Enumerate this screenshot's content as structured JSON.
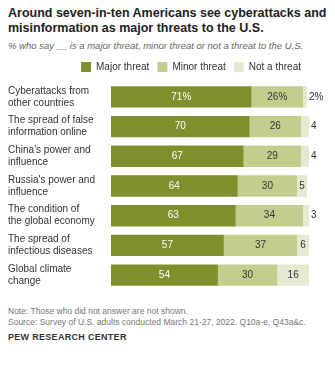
{
  "chart_data": {
    "type": "bar",
    "orientation": "horizontal",
    "stacked": true,
    "data_labels": true,
    "tick_labels": "y",
    "grid": false,
    "legend": "top",
    "title": "Around seven-in-ten Americans see cyberattacks and misinformation as major threats to the U.S.",
    "subtitle": "% who say __ is a major threat, minor threat or not a threat to the U.S.",
    "note": "Note: Those who did not answer are not shown.",
    "source": "Source: Survey of U.S. adults conducted March 21-27, 2022. Q10a-e, Q43a&c.",
    "footer": "PEW RESEARCH CENTER",
    "categories": [
      "Cyberattacks from other countries",
      "The spread of false information online",
      "China's power and influence",
      "Russia's power and influence",
      "The condition of the global economy",
      "The spread of infectious diseases",
      "Global climate change"
    ],
    "xlim": [
      0,
      100
    ],
    "series": [
      {
        "name": "Major threat",
        "color": "#7f8f2b",
        "values": [
          71,
          70,
          67,
          64,
          63,
          57,
          54
        ],
        "value_labels": [
          "71%",
          "70",
          "67",
          "64",
          "63",
          "57",
          "54"
        ]
      },
      {
        "name": "Minor threat",
        "color": "#c5cd8e",
        "values": [
          26,
          26,
          29,
          30,
          34,
          37,
          30
        ],
        "value_labels": [
          "26%",
          "26",
          "29",
          "30",
          "34",
          "37",
          "30"
        ]
      },
      {
        "name": "Not a threat",
        "color": "#e6e8d2",
        "values": [
          2,
          4,
          4,
          5,
          3,
          6,
          16
        ],
        "value_labels": [
          "2%",
          "4",
          "4",
          "5",
          "3",
          "6",
          "16"
        ]
      }
    ]
  }
}
